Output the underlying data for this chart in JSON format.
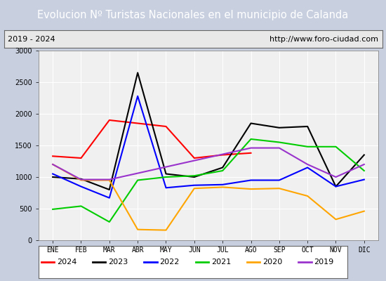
{
  "title": "Evolucion Nº Turistas Nacionales en el municipio de Calanda",
  "subtitle_left": "2019 - 2024",
  "subtitle_right": "http://www.foro-ciudad.com",
  "months": [
    "ENE",
    "FEB",
    "MAR",
    "ABR",
    "MAY",
    "JUN",
    "JUL",
    "AGO",
    "SEP",
    "OCT",
    "NOV",
    "DIC"
  ],
  "series": {
    "2024": {
      "color": "#ff0000",
      "data": [
        1330,
        1300,
        1900,
        1850,
        1800,
        1300,
        1350,
        1380,
        null,
        null,
        null,
        null
      ]
    },
    "2023": {
      "color": "#000000",
      "data": [
        1000,
        970,
        800,
        2650,
        1050,
        1000,
        1150,
        1850,
        1780,
        1800,
        850,
        1350
      ]
    },
    "2022": {
      "color": "#0000ff",
      "data": [
        1050,
        850,
        670,
        2280,
        830,
        870,
        880,
        950,
        950,
        1150,
        850,
        960
      ]
    },
    "2021": {
      "color": "#00cc00",
      "data": [
        490,
        540,
        290,
        950,
        1000,
        1020,
        1100,
        1600,
        1550,
        1480,
        1480,
        1100
      ]
    },
    "2020": {
      "color": "#ffa500",
      "data": [
        1200,
        950,
        950,
        170,
        160,
        820,
        840,
        810,
        820,
        700,
        330,
        460
      ]
    },
    "2019": {
      "color": "#9933cc",
      "data": [
        1200,
        960,
        960,
        null,
        null,
        null,
        null,
        1460,
        1460,
        1200,
        1000,
        1200
      ]
    }
  },
  "ylim": [
    0,
    3000
  ],
  "yticks": [
    0,
    500,
    1000,
    1500,
    2000,
    2500,
    3000
  ],
  "title_bg_color": "#5080c8",
  "title_text_color": "#ffffff",
  "plot_bg_color": "#f0f0f0",
  "outer_bg_color": "#c8d0e0",
  "grid_color": "#ffffff",
  "legend_order": [
    "2024",
    "2023",
    "2022",
    "2021",
    "2020",
    "2019"
  ]
}
